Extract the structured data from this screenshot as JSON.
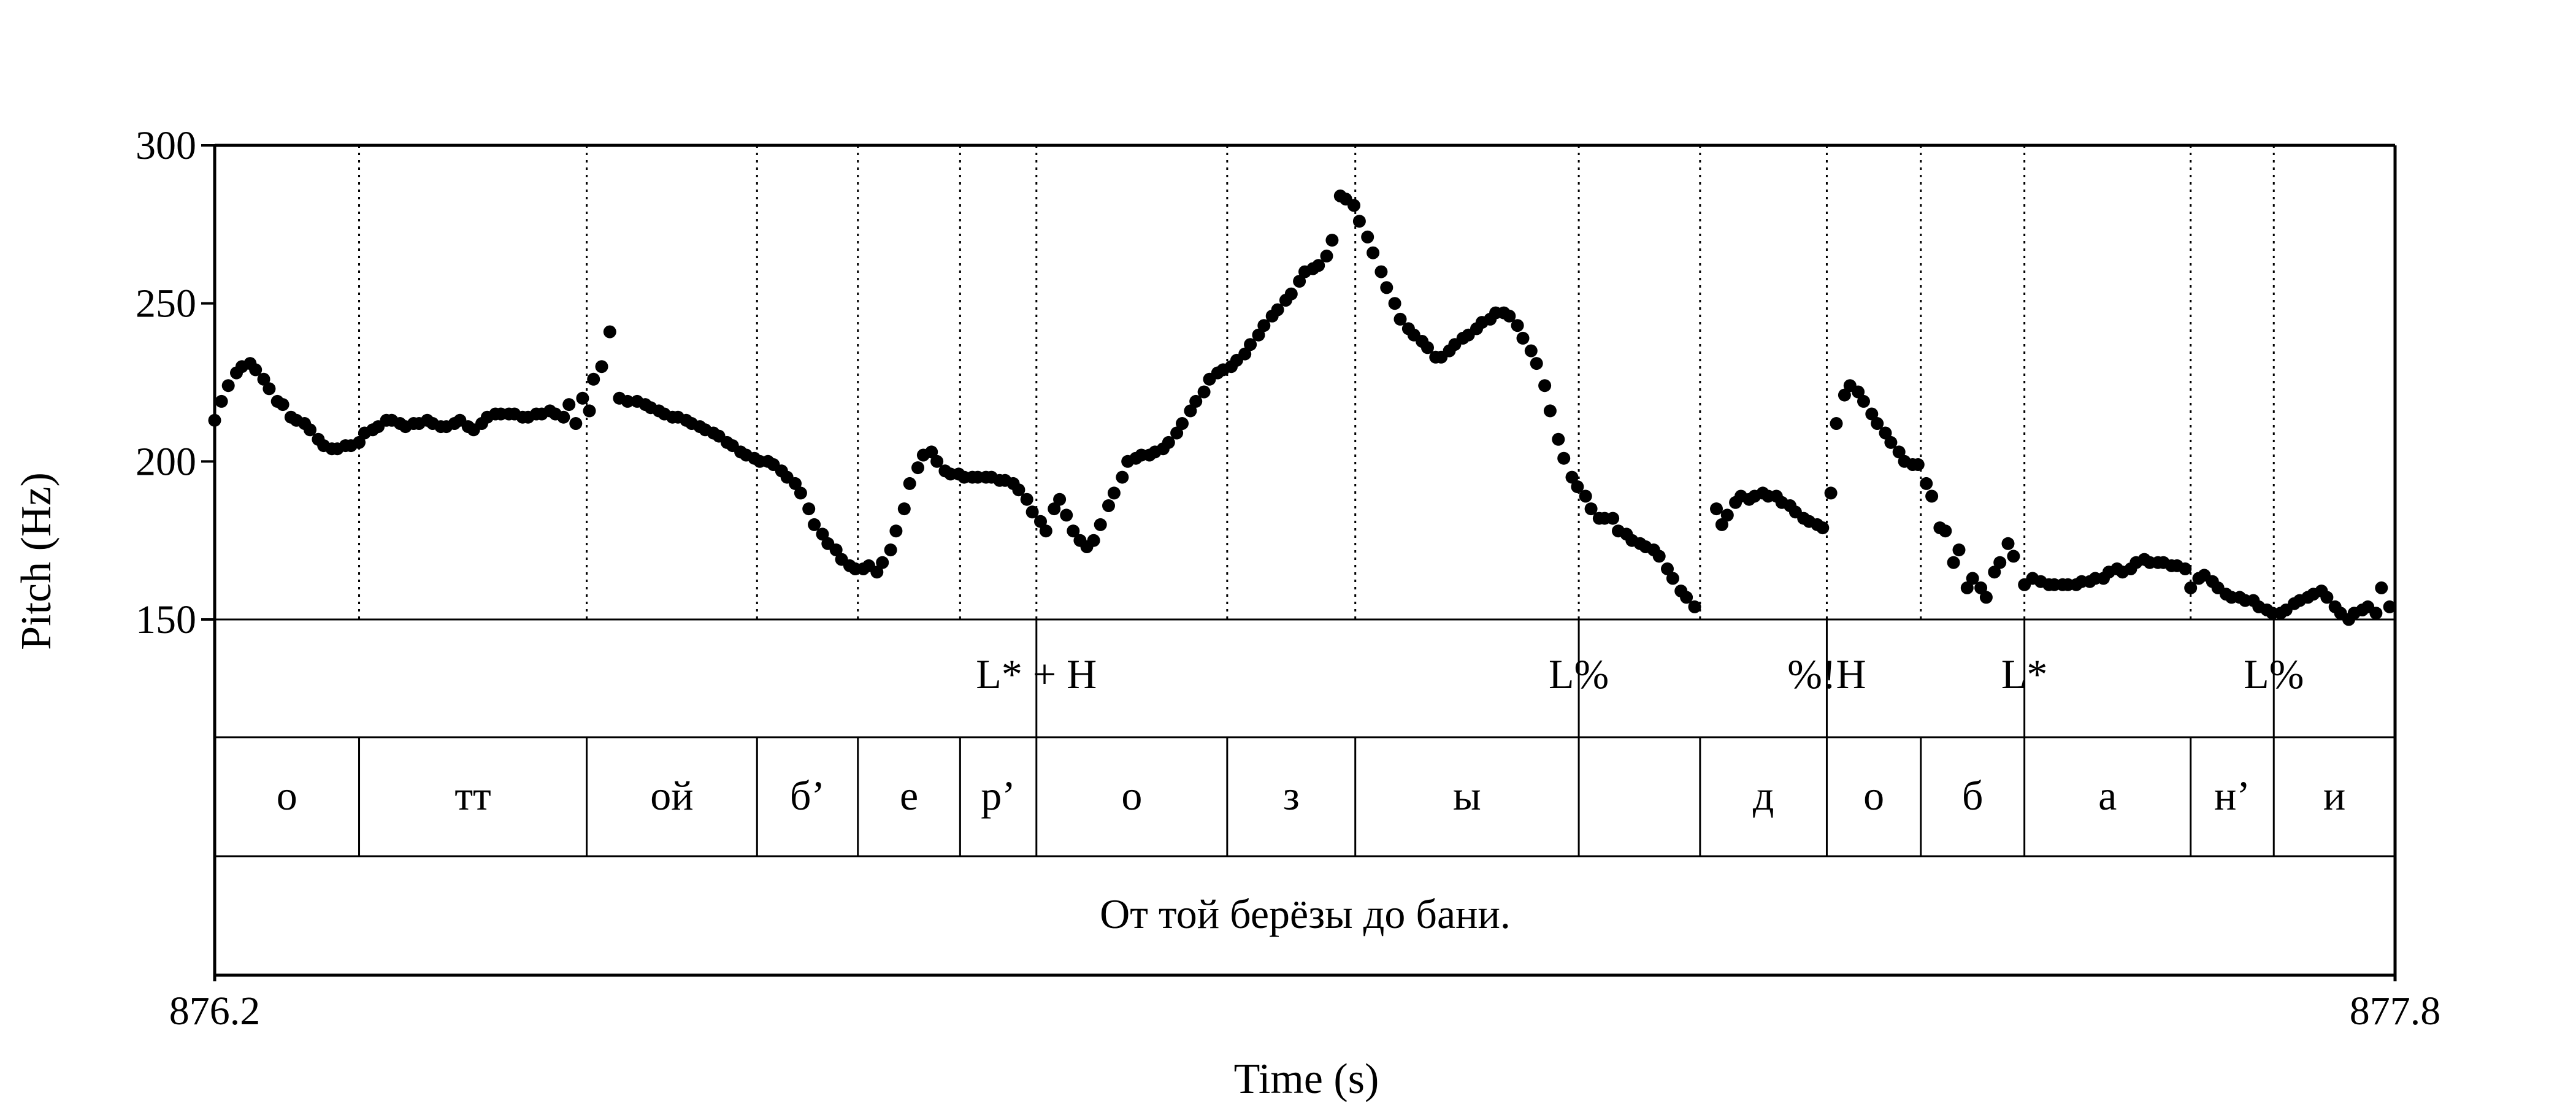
{
  "chart_data": {
    "type": "scatter",
    "xlabel": "Time (s)",
    "ylabel": "Pitch (Hz)",
    "xlim": [
      876.2,
      877.8
    ],
    "ylim": [
      150,
      300
    ],
    "x_tick_labels": [
      "876.2",
      "877.8"
    ],
    "y_ticks": [
      150,
      200,
      250,
      300
    ],
    "y_tick_labels": [
      "150",
      "200",
      "250",
      "300"
    ],
    "marker_color": "#000000",
    "segment_boundaries": [
      876.306,
      876.473,
      876.598,
      876.672,
      876.747,
      876.803,
      876.943,
      877.037,
      877.201,
      877.29,
      877.383,
      877.452,
      877.528,
      877.65,
      877.711
    ],
    "tone_tier": [
      {
        "time": 876.803,
        "label": "L* + H"
      },
      {
        "time": 877.201,
        "label": "L%"
      },
      {
        "time": 877.383,
        "label": "%!H"
      },
      {
        "time": 877.528,
        "label": "L*"
      },
      {
        "time": 877.711,
        "label": "L%"
      }
    ],
    "segments": [
      {
        "start": 876.2,
        "end": 876.306,
        "label": "о"
      },
      {
        "start": 876.306,
        "end": 876.473,
        "label": "тт"
      },
      {
        "start": 876.473,
        "end": 876.598,
        "label": "ой"
      },
      {
        "start": 876.598,
        "end": 876.672,
        "label": "б’"
      },
      {
        "start": 876.672,
        "end": 876.747,
        "label": "е"
      },
      {
        "start": 876.747,
        "end": 876.803,
        "label": "р’"
      },
      {
        "start": 876.803,
        "end": 876.943,
        "label": "о"
      },
      {
        "start": 876.943,
        "end": 877.037,
        "label": "з"
      },
      {
        "start": 877.037,
        "end": 877.201,
        "label": "ы"
      },
      {
        "start": 877.201,
        "end": 877.29,
        "label": ""
      },
      {
        "start": 877.29,
        "end": 877.383,
        "label": "д"
      },
      {
        "start": 877.383,
        "end": 877.452,
        "label": "о"
      },
      {
        "start": 877.452,
        "end": 877.528,
        "label": "б"
      },
      {
        "start": 877.528,
        "end": 877.65,
        "label": "а"
      },
      {
        "start": 877.65,
        "end": 877.711,
        "label": "н’"
      },
      {
        "start": 877.711,
        "end": 877.8,
        "label": "и"
      }
    ],
    "sentence": "От той берёзы до бани.",
    "pitch_points": [
      [
        876.2,
        213
      ],
      [
        876.205,
        219
      ],
      [
        876.21,
        224
      ],
      [
        876.216,
        228
      ],
      [
        876.22,
        230
      ],
      [
        876.226,
        231
      ],
      [
        876.23,
        229
      ],
      [
        876.236,
        226
      ],
      [
        876.24,
        223
      ],
      [
        876.246,
        219
      ],
      [
        876.25,
        218
      ],
      [
        876.256,
        214
      ],
      [
        876.26,
        213
      ],
      [
        876.266,
        212
      ],
      [
        876.27,
        210
      ],
      [
        876.276,
        207
      ],
      [
        876.28,
        205
      ],
      [
        876.286,
        204
      ],
      [
        876.29,
        204
      ],
      [
        876.296,
        205
      ],
      [
        876.3,
        205
      ],
      [
        876.306,
        206
      ],
      [
        876.31,
        209
      ],
      [
        876.316,
        210
      ],
      [
        876.32,
        211
      ],
      [
        876.326,
        213
      ],
      [
        876.33,
        213
      ],
      [
        876.336,
        212
      ],
      [
        876.34,
        211
      ],
      [
        876.346,
        212
      ],
      [
        876.35,
        212
      ],
      [
        876.356,
        213
      ],
      [
        876.36,
        212
      ],
      [
        876.366,
        211
      ],
      [
        876.37,
        211
      ],
      [
        876.376,
        212
      ],
      [
        876.38,
        213
      ],
      [
        876.386,
        211
      ],
      [
        876.39,
        210
      ],
      [
        876.396,
        212
      ],
      [
        876.4,
        214
      ],
      [
        876.406,
        215
      ],
      [
        876.41,
        215
      ],
      [
        876.416,
        215
      ],
      [
        876.42,
        215
      ],
      [
        876.426,
        214
      ],
      [
        876.43,
        214
      ],
      [
        876.436,
        215
      ],
      [
        876.44,
        215
      ],
      [
        876.446,
        216
      ],
      [
        876.45,
        215
      ],
      [
        876.456,
        214
      ],
      [
        876.46,
        218
      ],
      [
        876.465,
        212
      ],
      [
        876.47,
        220
      ],
      [
        876.475,
        216
      ],
      [
        876.478,
        226
      ],
      [
        876.484,
        230
      ],
      [
        876.49,
        241
      ],
      [
        876.497,
        220
      ],
      [
        876.503,
        219
      ],
      [
        876.51,
        219
      ],
      [
        876.516,
        218
      ],
      [
        876.52,
        217
      ],
      [
        876.526,
        216
      ],
      [
        876.53,
        215
      ],
      [
        876.536,
        214
      ],
      [
        876.54,
        214
      ],
      [
        876.546,
        213
      ],
      [
        876.55,
        212
      ],
      [
        876.556,
        211
      ],
      [
        876.56,
        210
      ],
      [
        876.566,
        209
      ],
      [
        876.57,
        208
      ],
      [
        876.576,
        206
      ],
      [
        876.58,
        205
      ],
      [
        876.586,
        203
      ],
      [
        876.59,
        202
      ],
      [
        876.596,
        201
      ],
      [
        876.6,
        200
      ],
      [
        876.606,
        200
      ],
      [
        876.61,
        199
      ],
      [
        876.616,
        197
      ],
      [
        876.62,
        195
      ],
      [
        876.626,
        193
      ],
      [
        876.63,
        190
      ],
      [
        876.636,
        185
      ],
      [
        876.64,
        180
      ],
      [
        876.646,
        177
      ],
      [
        876.65,
        174
      ],
      [
        876.656,
        172
      ],
      [
        876.66,
        169
      ],
      [
        876.666,
        167
      ],
      [
        876.67,
        166
      ],
      [
        876.676,
        166
      ],
      [
        876.68,
        167
      ],
      [
        876.686,
        165
      ],
      [
        876.69,
        168
      ],
      [
        876.696,
        172
      ],
      [
        876.7,
        178
      ],
      [
        876.706,
        185
      ],
      [
        876.71,
        193
      ],
      [
        876.716,
        198
      ],
      [
        876.72,
        202
      ],
      [
        876.726,
        203
      ],
      [
        876.73,
        200
      ],
      [
        876.736,
        197
      ],
      [
        876.74,
        196
      ],
      [
        876.746,
        196
      ],
      [
        876.75,
        195
      ],
      [
        876.756,
        195
      ],
      [
        876.76,
        195
      ],
      [
        876.766,
        195
      ],
      [
        876.77,
        195
      ],
      [
        876.776,
        194
      ],
      [
        876.78,
        194
      ],
      [
        876.786,
        193
      ],
      [
        876.79,
        191
      ],
      [
        876.796,
        188
      ],
      [
        876.8,
        184
      ],
      [
        876.806,
        181
      ],
      [
        876.81,
        178
      ],
      [
        876.816,
        185
      ],
      [
        876.82,
        188
      ],
      [
        876.825,
        183
      ],
      [
        876.83,
        178
      ],
      [
        876.835,
        175
      ],
      [
        876.84,
        173
      ],
      [
        876.845,
        175
      ],
      [
        876.85,
        180
      ],
      [
        876.856,
        186
      ],
      [
        876.86,
        190
      ],
      [
        876.866,
        195
      ],
      [
        876.87,
        200
      ],
      [
        876.876,
        201
      ],
      [
        876.88,
        202
      ],
      [
        876.886,
        202
      ],
      [
        876.89,
        203
      ],
      [
        876.896,
        204
      ],
      [
        876.9,
        206
      ],
      [
        876.906,
        209
      ],
      [
        876.91,
        212
      ],
      [
        876.916,
        216
      ],
      [
        876.92,
        219
      ],
      [
        876.926,
        222
      ],
      [
        876.93,
        226
      ],
      [
        876.936,
        228
      ],
      [
        876.94,
        229
      ],
      [
        876.946,
        230
      ],
      [
        876.95,
        232
      ],
      [
        876.956,
        234
      ],
      [
        876.96,
        237
      ],
      [
        876.966,
        240
      ],
      [
        876.97,
        243
      ],
      [
        876.976,
        246
      ],
      [
        876.98,
        248
      ],
      [
        876.986,
        251
      ],
      [
        876.99,
        253
      ],
      [
        876.996,
        257
      ],
      [
        877.0,
        260
      ],
      [
        877.006,
        261
      ],
      [
        877.01,
        262
      ],
      [
        877.016,
        265
      ],
      [
        877.02,
        270
      ],
      [
        877.026,
        284
      ],
      [
        877.03,
        283
      ],
      [
        877.036,
        281
      ],
      [
        877.04,
        276
      ],
      [
        877.046,
        271
      ],
      [
        877.05,
        266
      ],
      [
        877.056,
        260
      ],
      [
        877.06,
        255
      ],
      [
        877.066,
        250
      ],
      [
        877.07,
        245
      ],
      [
        877.076,
        242
      ],
      [
        877.08,
        240
      ],
      [
        877.086,
        238
      ],
      [
        877.09,
        236
      ],
      [
        877.096,
        233
      ],
      [
        877.1,
        233
      ],
      [
        877.106,
        235
      ],
      [
        877.11,
        237
      ],
      [
        877.116,
        239
      ],
      [
        877.12,
        240
      ],
      [
        877.126,
        242
      ],
      [
        877.13,
        244
      ],
      [
        877.136,
        245
      ],
      [
        877.14,
        247
      ],
      [
        877.146,
        247
      ],
      [
        877.15,
        246
      ],
      [
        877.156,
        243
      ],
      [
        877.16,
        239
      ],
      [
        877.166,
        235
      ],
      [
        877.17,
        231
      ],
      [
        877.176,
        224
      ],
      [
        877.18,
        216
      ],
      [
        877.186,
        207
      ],
      [
        877.19,
        201
      ],
      [
        877.196,
        195
      ],
      [
        877.2,
        192
      ],
      [
        877.206,
        189
      ],
      [
        877.21,
        185
      ],
      [
        877.216,
        182
      ],
      [
        877.22,
        182
      ],
      [
        877.226,
        182
      ],
      [
        877.23,
        178
      ],
      [
        877.236,
        177
      ],
      [
        877.24,
        175
      ],
      [
        877.246,
        174
      ],
      [
        877.25,
        173
      ],
      [
        877.256,
        172
      ],
      [
        877.26,
        170
      ],
      [
        877.266,
        166
      ],
      [
        877.27,
        163
      ],
      [
        877.276,
        159
      ],
      [
        877.28,
        157
      ],
      [
        877.286,
        154
      ],
      [
        877.302,
        185
      ],
      [
        877.306,
        180
      ],
      [
        877.31,
        183
      ],
      [
        877.316,
        187
      ],
      [
        877.32,
        189
      ],
      [
        877.326,
        188
      ],
      [
        877.33,
        189
      ],
      [
        877.336,
        190
      ],
      [
        877.34,
        189
      ],
      [
        877.346,
        189
      ],
      [
        877.35,
        187
      ],
      [
        877.356,
        186
      ],
      [
        877.36,
        184
      ],
      [
        877.366,
        182
      ],
      [
        877.37,
        181
      ],
      [
        877.376,
        180
      ],
      [
        877.38,
        179
      ],
      [
        877.386,
        190
      ],
      [
        877.39,
        212
      ],
      [
        877.396,
        221
      ],
      [
        877.4,
        224
      ],
      [
        877.406,
        222
      ],
      [
        877.41,
        219
      ],
      [
        877.416,
        215
      ],
      [
        877.42,
        212
      ],
      [
        877.426,
        209
      ],
      [
        877.43,
        206
      ],
      [
        877.436,
        203
      ],
      [
        877.44,
        200
      ],
      [
        877.446,
        199
      ],
      [
        877.45,
        199
      ],
      [
        877.456,
        193
      ],
      [
        877.46,
        189
      ],
      [
        877.466,
        179
      ],
      [
        877.47,
        178
      ],
      [
        877.476,
        168
      ],
      [
        877.48,
        172
      ],
      [
        877.486,
        160
      ],
      [
        877.49,
        163
      ],
      [
        877.496,
        160
      ],
      [
        877.5,
        157
      ],
      [
        877.506,
        165
      ],
      [
        877.51,
        168
      ],
      [
        877.516,
        174
      ],
      [
        877.52,
        170
      ],
      [
        877.528,
        161
      ],
      [
        877.534,
        163
      ],
      [
        877.54,
        162
      ],
      [
        877.546,
        161
      ],
      [
        877.55,
        161
      ],
      [
        877.556,
        161
      ],
      [
        877.56,
        161
      ],
      [
        877.566,
        161
      ],
      [
        877.57,
        162
      ],
      [
        877.576,
        162
      ],
      [
        877.58,
        163
      ],
      [
        877.586,
        163
      ],
      [
        877.59,
        165
      ],
      [
        877.596,
        166
      ],
      [
        877.6,
        165
      ],
      [
        877.606,
        166
      ],
      [
        877.61,
        168
      ],
      [
        877.616,
        169
      ],
      [
        877.62,
        168
      ],
      [
        877.626,
        168
      ],
      [
        877.63,
        168
      ],
      [
        877.636,
        167
      ],
      [
        877.64,
        167
      ],
      [
        877.646,
        166
      ],
      [
        877.65,
        160
      ],
      [
        877.656,
        163
      ],
      [
        877.66,
        164
      ],
      [
        877.666,
        162
      ],
      [
        877.67,
        160
      ],
      [
        877.676,
        158
      ],
      [
        877.68,
        157
      ],
      [
        877.686,
        157
      ],
      [
        877.69,
        156
      ],
      [
        877.696,
        156
      ],
      [
        877.7,
        154
      ],
      [
        877.706,
        153
      ],
      [
        877.71,
        152
      ],
      [
        877.716,
        152
      ],
      [
        877.72,
        153
      ],
      [
        877.726,
        155
      ],
      [
        877.73,
        156
      ],
      [
        877.736,
        157
      ],
      [
        877.74,
        158
      ],
      [
        877.746,
        159
      ],
      [
        877.75,
        157
      ],
      [
        877.756,
        154
      ],
      [
        877.76,
        152
      ],
      [
        877.766,
        150
      ],
      [
        877.77,
        152
      ],
      [
        877.776,
        153
      ],
      [
        877.78,
        154
      ],
      [
        877.786,
        152
      ],
      [
        877.79,
        160
      ],
      [
        877.796,
        154
      ]
    ]
  }
}
